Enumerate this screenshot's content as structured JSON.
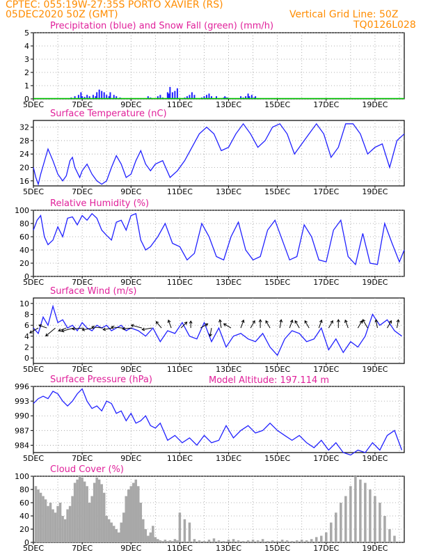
{
  "header": {
    "line1": "CPTEC:   055:19W-27:35S   PORTO XAVIER (RS)",
    "line2_left": "05DEC2020 50Z (GMT)",
    "grid_note": "Vertical Grid Line: 50Z",
    "code": "TQ0126L028",
    "model_altitude": "Model Altitude: 197.114 m",
    "colors": {
      "header": "#ff8c00",
      "title": "#e0209a",
      "line": "#2020ff",
      "snow": "#00cc00",
      "cloud": "#a8a8a8",
      "arrow": "#000000"
    }
  },
  "chart_data": [
    {
      "type": "bar",
      "title": "Precipitation (blue) and Snow Fall (green) (mm/h)",
      "x_labels": [
        "5DEC",
        "7DEC",
        "9DEC",
        "11DEC",
        "13DEC",
        "15DEC",
        "17DEC",
        "19DEC"
      ],
      "ylim": [
        0,
        5
      ],
      "yticks": [
        "0",
        "1",
        "2",
        "3",
        "4",
        "5"
      ],
      "grid": true,
      "series": [
        {
          "name": "Precipitation",
          "color": "#2020ff",
          "x": [
            1.55,
            1.7,
            1.85,
            1.95,
            2.0,
            2.1,
            2.2,
            2.3,
            2.45,
            2.55,
            2.6,
            2.7,
            2.8,
            2.9,
            3.0,
            3.1,
            3.15,
            3.3,
            3.4,
            3.55,
            4.7,
            4.8,
            5.1,
            5.2,
            5.3,
            5.5,
            5.55,
            5.6,
            5.7,
            5.8,
            5.9,
            6.2,
            6.3,
            6.4,
            6.5,
            6.6,
            6.9,
            7.0,
            7.1,
            7.2,
            7.3,
            7.5,
            7.8,
            7.85,
            7.9,
            7.95,
            8.5,
            8.6,
            8.7,
            8.8,
            8.85,
            8.95,
            9.05,
            9.1
          ],
          "values": [
            0.1,
            0.2,
            0.3,
            0.5,
            0.2,
            0.15,
            0.3,
            0.2,
            0.3,
            0.2,
            0.5,
            0.7,
            0.6,
            0.5,
            0.3,
            0.2,
            0.5,
            0.3,
            0.2,
            0.1,
            0.2,
            0.1,
            0.2,
            0.3,
            0.1,
            0.5,
            0.4,
            0.9,
            0.5,
            0.6,
            0.8,
            0.1,
            0.2,
            0.3,
            0.5,
            0.3,
            0.1,
            0.2,
            0.3,
            0.4,
            0.2,
            0.2,
            0.1,
            0.2,
            0.1,
            0.1,
            0.2,
            0.1,
            0.2,
            0.4,
            0.2,
            0.3,
            0.1,
            0.2
          ]
        },
        {
          "name": "Snow Fall",
          "color": "#00cc00",
          "x": [],
          "values": []
        }
      ]
    },
    {
      "type": "line",
      "title": "Surface Temperature (nC)",
      "x_labels": [
        "5DEC",
        "7DEC",
        "9DEC",
        "11DEC",
        "13DEC",
        "15DEC",
        "17DEC",
        "19DEC"
      ],
      "ylim": [
        14.5,
        34
      ],
      "yticks": [
        "16",
        "20",
        "24",
        "28",
        "32"
      ],
      "grid": true,
      "x": [
        0,
        0.1,
        0.2,
        0.3,
        0.5,
        0.6,
        0.8,
        1.0,
        1.2,
        1.35,
        1.5,
        1.6,
        1.7,
        1.9,
        2.0,
        2.2,
        2.4,
        2.6,
        2.8,
        3.0,
        3.2,
        3.4,
        3.6,
        3.8,
        4.0,
        4.2,
        4.4,
        4.6,
        4.8,
        5.0,
        5.3,
        5.6,
        5.9,
        6.2,
        6.5,
        6.8,
        7.1,
        7.4,
        7.7,
        8.0,
        8.3,
        8.6,
        8.9,
        9.2,
        9.5,
        9.8,
        10.1,
        10.4,
        10.7,
        11.0,
        11.3,
        11.6,
        11.9,
        12.2,
        12.5,
        12.8,
        13.1,
        13.4,
        13.7,
        14.0,
        14.3,
        14.6,
        14.9,
        15.2
      ],
      "values": [
        20,
        17,
        15,
        18,
        23,
        25.5,
        22,
        18,
        16,
        17.5,
        22,
        23,
        20,
        17,
        19,
        21,
        18,
        16,
        15,
        16,
        20,
        23.5,
        21,
        17,
        18,
        22,
        25,
        21,
        19,
        21,
        22,
        17,
        19,
        22,
        26,
        30,
        32,
        30,
        25,
        26,
        30,
        33,
        30,
        26,
        28,
        32,
        33,
        30,
        24,
        27,
        30,
        33,
        30,
        23,
        26,
        33,
        33,
        30,
        24,
        26,
        27,
        20,
        28,
        30
      ]
    },
    {
      "type": "line",
      "title": "Relative Humidity (%)",
      "x_labels": [
        "5DEC",
        "7DEC",
        "9DEC",
        "11DEC",
        "13DEC",
        "15DEC",
        "17DEC",
        "19DEC"
      ],
      "ylim": [
        0,
        100
      ],
      "yticks": [
        "0",
        "20",
        "40",
        "60",
        "80",
        "100"
      ],
      "grid": true,
      "x": [
        0,
        0.15,
        0.3,
        0.45,
        0.6,
        0.8,
        1.0,
        1.2,
        1.4,
        1.6,
        1.8,
        2.0,
        2.2,
        2.4,
        2.6,
        2.8,
        3.0,
        3.2,
        3.4,
        3.6,
        3.8,
        4.0,
        4.2,
        4.4,
        4.6,
        4.8,
        5.1,
        5.4,
        5.7,
        6.0,
        6.3,
        6.6,
        6.9,
        7.2,
        7.5,
        7.8,
        8.1,
        8.4,
        8.7,
        9.0,
        9.3,
        9.6,
        9.9,
        10.2,
        10.5,
        10.8,
        11.1,
        11.4,
        11.7,
        12.0,
        12.3,
        12.6,
        12.9,
        13.2,
        13.5,
        13.8,
        14.1,
        14.4,
        14.7,
        15.0,
        15.2
      ],
      "values": [
        70,
        85,
        92,
        60,
        48,
        55,
        75,
        60,
        88,
        90,
        78,
        92,
        85,
        95,
        88,
        70,
        62,
        55,
        82,
        85,
        70,
        92,
        95,
        55,
        40,
        45,
        60,
        80,
        50,
        45,
        25,
        35,
        80,
        60,
        30,
        25,
        60,
        82,
        40,
        25,
        30,
        70,
        85,
        55,
        25,
        30,
        78,
        60,
        25,
        22,
        70,
        85,
        30,
        18,
        65,
        20,
        18,
        80,
        50,
        22,
        40
      ]
    },
    {
      "type": "line",
      "title": "Surface Wind (m/s)",
      "x_labels": [
        "5DEC",
        "7DEC",
        "9DEC",
        "11DEC",
        "13DEC",
        "15DEC",
        "17DEC",
        "19DEC"
      ],
      "ylim": [
        -1,
        11
      ],
      "yticks": [
        "0",
        "2",
        "4",
        "6",
        "8",
        "10"
      ],
      "grid": true,
      "x": [
        0,
        0.2,
        0.4,
        0.6,
        0.8,
        1.0,
        1.2,
        1.4,
        1.6,
        1.8,
        2.0,
        2.2,
        2.4,
        2.6,
        2.8,
        3.0,
        3.2,
        3.4,
        3.6,
        3.8,
        4.0,
        4.3,
        4.6,
        4.9,
        5.2,
        5.5,
        5.8,
        6.1,
        6.4,
        6.7,
        7.0,
        7.3,
        7.6,
        7.9,
        8.2,
        8.5,
        8.8,
        9.1,
        9.4,
        9.7,
        10.0,
        10.3,
        10.6,
        10.9,
        11.2,
        11.5,
        11.8,
        12.1,
        12.4,
        12.7,
        13.0,
        13.3,
        13.6,
        13.9,
        14.2,
        14.5,
        14.8,
        15.1
      ],
      "values": [
        5.5,
        4.5,
        7.5,
        6,
        9.5,
        6.5,
        7,
        5.5,
        6,
        5,
        6.5,
        5.5,
        5,
        6,
        5.5,
        6,
        5,
        5.5,
        6,
        5,
        5.5,
        5,
        4,
        5.5,
        3,
        5,
        4.5,
        6.5,
        4,
        3.5,
        6.5,
        3,
        5.5,
        2,
        4,
        4.5,
        3.5,
        3,
        4.5,
        2,
        0.5,
        3.5,
        5,
        4.5,
        3,
        3.5,
        5.5,
        1.5,
        3.5,
        1,
        3,
        2,
        4,
        8,
        6,
        7,
        5,
        4
      ],
      "arrows": [
        {
          "x": 0.2,
          "dir": 210,
          "len": 14
        },
        {
          "x": 0.55,
          "dir": 160,
          "len": 12
        },
        {
          "x": 0.9,
          "dir": 220,
          "len": 18
        },
        {
          "x": 1.35,
          "dir": 200,
          "len": 12
        },
        {
          "x": 1.65,
          "dir": 195,
          "len": 18
        },
        {
          "x": 2.05,
          "dir": 185,
          "len": 16
        },
        {
          "x": 2.45,
          "dir": 190,
          "len": 16
        },
        {
          "x": 2.85,
          "dir": 175,
          "len": 16
        },
        {
          "x": 3.25,
          "dir": 190,
          "len": 14
        },
        {
          "x": 3.65,
          "dir": 175,
          "len": 16
        },
        {
          "x": 4.05,
          "dir": 185,
          "len": 14
        },
        {
          "x": 4.45,
          "dir": 165,
          "len": 16
        },
        {
          "x": 4.85,
          "dir": 190,
          "len": 14
        },
        {
          "x": 5.25,
          "dir": 130,
          "len": 12
        },
        {
          "x": 5.65,
          "dir": 110,
          "len": 12
        },
        {
          "x": 6.05,
          "dir": 45,
          "len": 12
        },
        {
          "x": 6.45,
          "dir": 90,
          "len": 10
        },
        {
          "x": 6.85,
          "dir": 30,
          "len": 12
        },
        {
          "x": 7.3,
          "dir": 260,
          "len": 12
        },
        {
          "x": 7.7,
          "dir": 100,
          "len": 12
        },
        {
          "x": 8.1,
          "dir": 150,
          "len": 12
        },
        {
          "x": 8.5,
          "dir": 70,
          "len": 12
        },
        {
          "x": 8.9,
          "dir": 60,
          "len": 12
        },
        {
          "x": 9.3,
          "dir": 90,
          "len": 12
        },
        {
          "x": 9.7,
          "dir": 120,
          "len": 12
        },
        {
          "x": 10.1,
          "dir": 80,
          "len": 12
        },
        {
          "x": 10.5,
          "dir": 70,
          "len": 12
        },
        {
          "x": 10.9,
          "dir": 120,
          "len": 12
        },
        {
          "x": 11.3,
          "dir": 120,
          "len": 12
        },
        {
          "x": 11.7,
          "dir": 70,
          "len": 12
        },
        {
          "x": 12.1,
          "dir": 60,
          "len": 12
        },
        {
          "x": 12.5,
          "dir": 90,
          "len": 12
        },
        {
          "x": 12.9,
          "dir": 110,
          "len": 12
        },
        {
          "x": 13.3,
          "dir": 60,
          "len": 12
        },
        {
          "x": 13.7,
          "dir": 120,
          "len": 14
        },
        {
          "x": 14.1,
          "dir": 100,
          "len": 12
        },
        {
          "x": 14.5,
          "dir": 60,
          "len": 12
        },
        {
          "x": 14.9,
          "dir": 80,
          "len": 12
        }
      ]
    },
    {
      "type": "line",
      "title": "Surface Pressure (hPa)",
      "x_labels": [
        "5DEC",
        "7DEC",
        "9DEC",
        "11DEC",
        "13DEC",
        "15DEC",
        "17DEC",
        "19DEC"
      ],
      "ylim": [
        982.5,
        996
      ],
      "yticks": [
        "984",
        "987",
        "990",
        "993",
        "996"
      ],
      "grid": true,
      "x": [
        0,
        0.2,
        0.4,
        0.6,
        0.8,
        1.0,
        1.2,
        1.4,
        1.6,
        1.8,
        2.0,
        2.2,
        2.4,
        2.6,
        2.8,
        3.0,
        3.2,
        3.4,
        3.6,
        3.8,
        4.0,
        4.2,
        4.4,
        4.6,
        4.8,
        5.0,
        5.2,
        5.5,
        5.8,
        6.1,
        6.4,
        6.7,
        7.0,
        7.3,
        7.6,
        7.9,
        8.2,
        8.5,
        8.8,
        9.1,
        9.4,
        9.7,
        10.0,
        10.3,
        10.6,
        10.9,
        11.2,
        11.5,
        11.8,
        12.1,
        12.4,
        12.7,
        13.0,
        13.3,
        13.6,
        13.9,
        14.2,
        14.5,
        14.8,
        15.1
      ],
      "values": [
        992.5,
        993.5,
        994,
        993.5,
        995,
        994.5,
        993,
        992,
        993,
        994.5,
        995.5,
        993,
        991.5,
        992,
        991,
        993,
        992.5,
        990.5,
        991,
        989,
        990.5,
        988.5,
        989,
        990,
        988,
        987.5,
        988.5,
        985,
        986,
        984.5,
        985.5,
        984,
        986,
        984.5,
        985,
        988,
        985.5,
        987,
        988,
        986.5,
        987,
        988.5,
        987,
        986,
        985,
        986,
        984.5,
        983.5,
        985,
        983,
        984.5,
        982.5,
        982,
        983,
        982.5,
        984.5,
        983,
        986,
        987,
        983
      ]
    },
    {
      "type": "bar",
      "title": "Cloud Cover (%)",
      "x_labels": [
        "5DEC",
        "7DEC",
        "9DEC",
        "11DEC",
        "13DEC",
        "15DEC",
        "17DEC",
        "19DEC"
      ],
      "ylim": [
        0,
        100
      ],
      "yticks": [
        "0",
        "20",
        "40",
        "60",
        "80",
        "100"
      ],
      "grid": true,
      "x": [
        0.1,
        0.2,
        0.3,
        0.4,
        0.5,
        0.6,
        0.7,
        0.8,
        0.9,
        1.0,
        1.1,
        1.2,
        1.3,
        1.4,
        1.5,
        1.6,
        1.7,
        1.8,
        1.9,
        2.0,
        2.1,
        2.2,
        2.3,
        2.4,
        2.5,
        2.6,
        2.7,
        2.8,
        2.9,
        3.0,
        3.1,
        3.2,
        3.3,
        3.4,
        3.5,
        3.6,
        3.7,
        3.8,
        3.9,
        4.0,
        4.1,
        4.2,
        4.3,
        4.4,
        4.5,
        4.6,
        4.7,
        4.8,
        4.9,
        5.0,
        5.1,
        5.2,
        5.3,
        5.4,
        5.5,
        5.6,
        5.7,
        5.8,
        5.9,
        6.0,
        6.2,
        6.4,
        6.6,
        6.8,
        7.0,
        7.2,
        7.4,
        7.6,
        7.8,
        8.0,
        8.2,
        8.4,
        8.6,
        8.8,
        9.0,
        9.2,
        9.4,
        9.6,
        9.8,
        10.0,
        10.2,
        10.4,
        10.6,
        10.8,
        11.0,
        11.2,
        11.4,
        11.6,
        11.8,
        12.0,
        12.2,
        12.4,
        12.6,
        12.8,
        13.0,
        13.2,
        13.4,
        13.6,
        13.8,
        14.0,
        14.2,
        14.4,
        14.6,
        14.8
      ],
      "values": [
        85,
        80,
        75,
        70,
        65,
        55,
        60,
        50,
        45,
        55,
        60,
        40,
        35,
        50,
        55,
        70,
        90,
        95,
        100,
        98,
        92,
        85,
        60,
        70,
        90,
        98,
        95,
        88,
        75,
        40,
        35,
        30,
        25,
        20,
        15,
        30,
        45,
        70,
        80,
        85,
        90,
        95,
        85,
        60,
        35,
        20,
        10,
        15,
        25,
        8,
        5,
        3,
        2,
        4,
        2,
        3,
        2,
        5,
        3,
        45,
        35,
        30,
        5,
        3,
        2,
        4,
        6,
        3,
        2,
        4,
        5,
        3,
        2,
        3,
        4,
        3,
        5,
        2,
        3,
        2,
        4,
        3,
        2,
        3,
        4,
        3,
        5,
        8,
        10,
        15,
        30,
        45,
        60,
        70,
        85,
        100,
        95,
        90,
        80,
        70,
        60,
        40,
        20,
        10
      ]
    }
  ]
}
